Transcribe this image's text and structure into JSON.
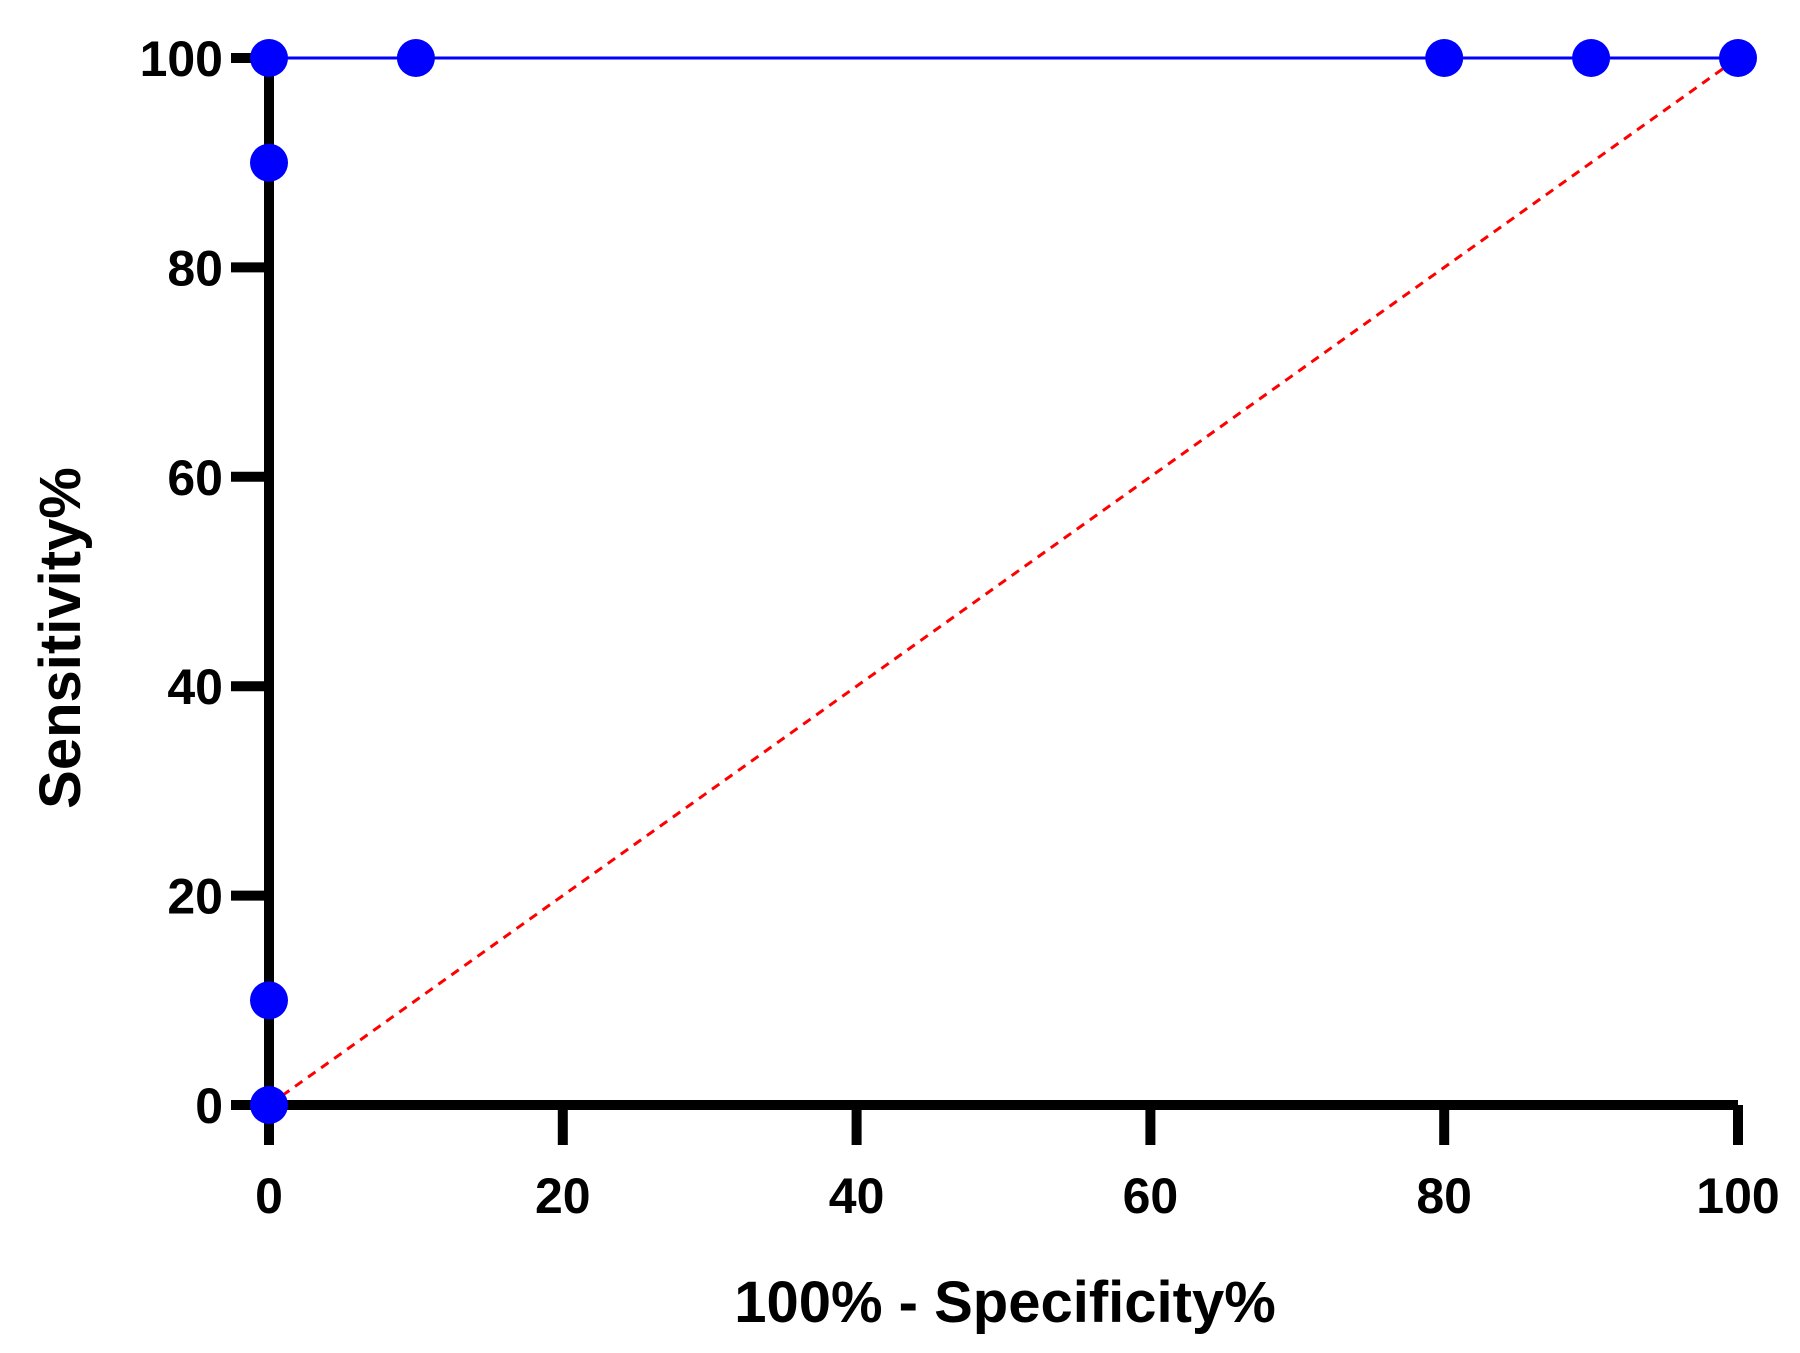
{
  "chart_data": {
    "type": "line",
    "xlabel": "100% - Specificity%",
    "ylabel": "Sensitivity%",
    "xlim": [
      0,
      100
    ],
    "ylim": [
      0,
      100
    ],
    "x_ticks": [
      0,
      20,
      40,
      60,
      80,
      100
    ],
    "y_ticks": [
      0,
      20,
      40,
      60,
      80,
      100
    ],
    "grid": false,
    "series": [
      {
        "x": [
          0,
          0,
          0,
          0,
          10,
          80,
          90,
          100
        ],
        "y": [
          0,
          10,
          90,
          100,
          100,
          100,
          100,
          100
        ],
        "color": "#0000ff",
        "style": "solid",
        "markers": true
      },
      {
        "x": [
          0,
          100
        ],
        "y": [
          0,
          100
        ],
        "color": "#ff0000",
        "style": "dashed",
        "markers": false
      }
    ]
  }
}
